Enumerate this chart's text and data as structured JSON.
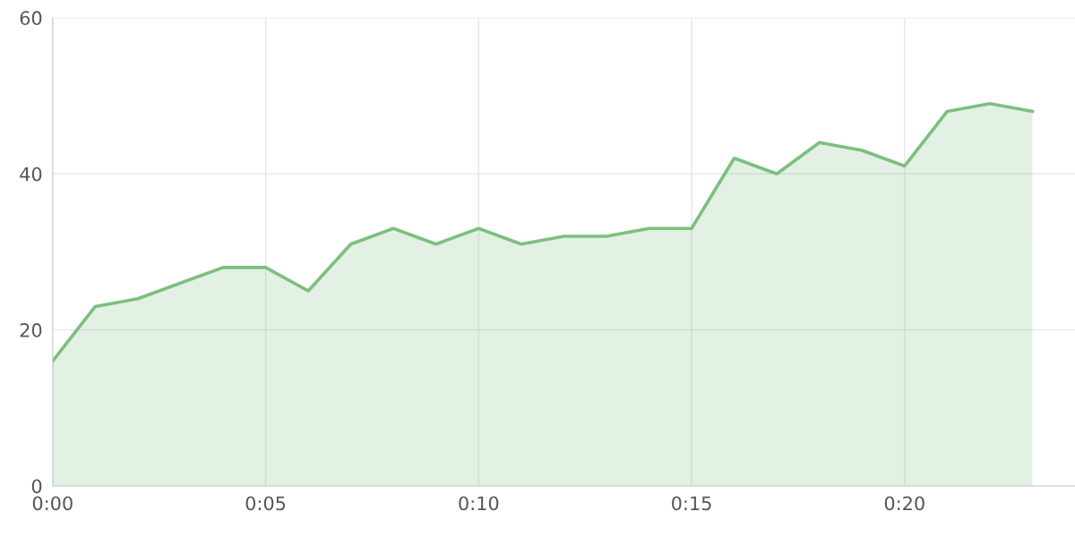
{
  "chart_data": {
    "type": "area",
    "x": [
      0,
      1,
      2,
      3,
      4,
      5,
      6,
      7,
      8,
      9,
      10,
      11,
      12,
      13,
      14,
      15,
      16,
      17,
      18,
      19,
      20,
      21,
      22,
      23
    ],
    "series": [
      {
        "color": "#7dbf7f",
        "values": [
          16,
          23,
          24,
          26,
          28,
          28,
          25,
          31,
          33,
          31,
          33,
          31,
          32,
          32,
          33,
          33,
          42,
          40,
          44,
          43,
          41,
          48,
          49,
          48
        ]
      }
    ],
    "xlim": [
      0,
      24
    ],
    "xticks": [
      {
        "value": 0,
        "label": "0:00"
      },
      {
        "value": 5,
        "label": "0:05"
      },
      {
        "value": 10,
        "label": "0:10"
      },
      {
        "value": 15,
        "label": "0:15"
      },
      {
        "value": 20,
        "label": "0:20"
      }
    ],
    "ylim": [
      0,
      60
    ],
    "yticks": [
      0,
      20,
      40,
      60
    ],
    "grid": true,
    "marker": "none",
    "line_style": "solid"
  }
}
